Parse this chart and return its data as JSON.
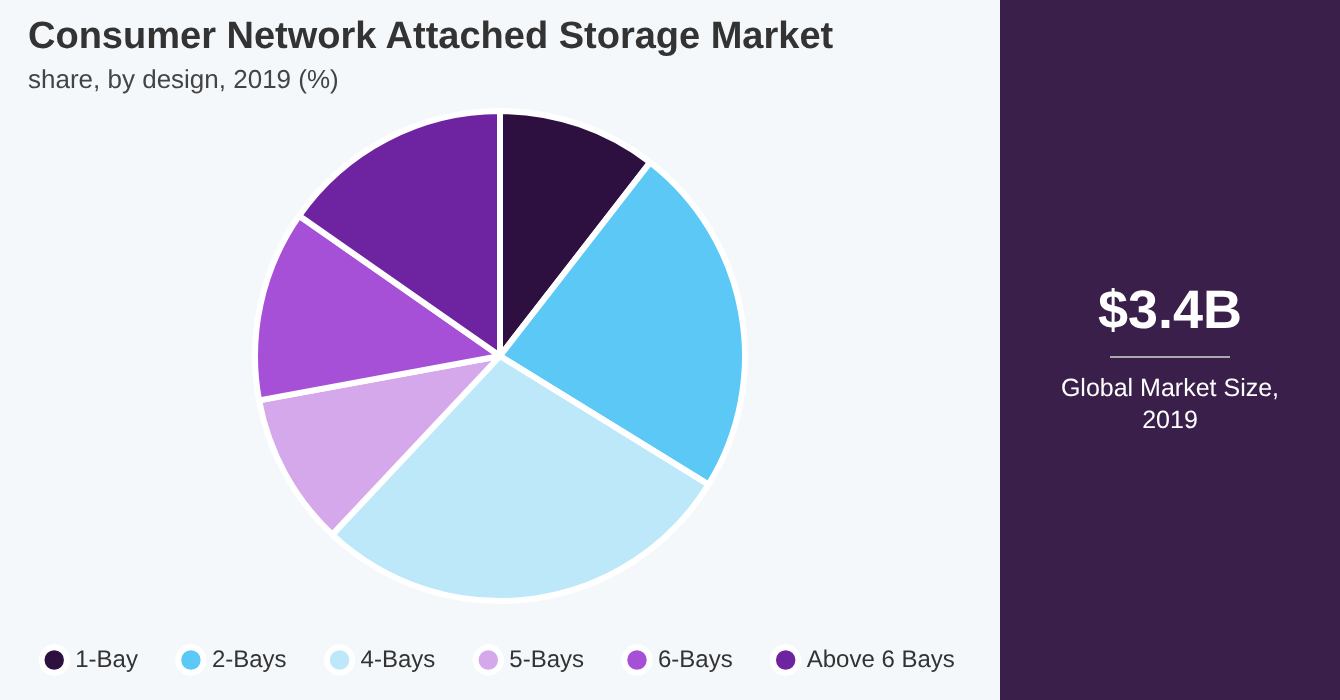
{
  "chart_data": {
    "type": "pie",
    "title": "Consumer Network Attached Storage Market",
    "subtitle": "share, by design, 2019 (%)",
    "categories": [
      "1-Bay",
      "2-Bays",
      "4-Bays",
      "5-Bays",
      "6-Bays",
      "Above 6 Bays"
    ],
    "values": [
      10.5,
      23.3,
      28.2,
      10.1,
      12.6,
      15.3
    ],
    "colors": [
      "#2d1040",
      "#5bc8f5",
      "#bde8f9",
      "#d4a8ea",
      "#a650d8",
      "#6e24a0"
    ],
    "legend": "bottom",
    "annotations": [
      "$3.4B",
      "Global Market Size, 2019"
    ]
  }
}
